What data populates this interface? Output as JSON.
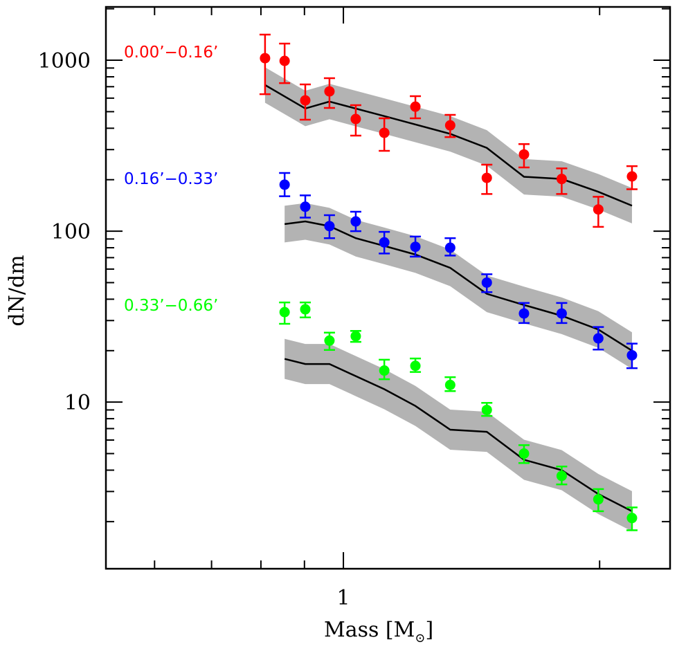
{
  "chart_data": {
    "type": "scatter",
    "title": "",
    "xlabel": "Mass [M☉]",
    "xlabel_parts": {
      "main": "Mass [M",
      "sub": "⊙",
      "close": "]"
    },
    "ylabel": "dN/dm",
    "xscale": "log",
    "yscale": "log",
    "xlim": [
      0.526,
      2.42
    ],
    "ylim": [
      1.06,
      2050
    ],
    "x_ticks_major": [
      {
        "value": 1,
        "label": "1"
      },
      {
        "value": 2,
        "label": ""
      }
    ],
    "x_ticks_minor": [
      0.6,
      0.7,
      0.8,
      0.9
    ],
    "y_ticks_major": [
      {
        "value": 10,
        "label": "10"
      },
      {
        "value": 100,
        "label": "100"
      },
      {
        "value": 1000,
        "label": "1000"
      }
    ],
    "y_ticks_minor": [
      2,
      3,
      4,
      5,
      6,
      7,
      8,
      9,
      20,
      30,
      40,
      50,
      60,
      70,
      80,
      90,
      200,
      300,
      400,
      500,
      600,
      700,
      800,
      900,
      2000
    ],
    "grid": false,
    "band_color": "#b3b3b3",
    "model_line_color": "#000000",
    "series": [
      {
        "name": "0.00’−0.16’",
        "color": "#ff0000",
        "points": [
          {
            "x": 0.809,
            "y": 1028,
            "ylo": 633,
            "yhi": 1412
          },
          {
            "x": 0.853,
            "y": 991,
            "ylo": 735,
            "yhi": 1251
          },
          {
            "x": 0.902,
            "y": 582,
            "ylo": 449,
            "yhi": 722
          },
          {
            "x": 0.963,
            "y": 657,
            "ylo": 526,
            "yhi": 785
          },
          {
            "x": 1.034,
            "y": 453,
            "ylo": 362,
            "yhi": 546
          },
          {
            "x": 1.117,
            "y": 376,
            "ylo": 295,
            "yhi": 457
          },
          {
            "x": 1.215,
            "y": 535,
            "ylo": 457,
            "yhi": 616
          },
          {
            "x": 1.335,
            "y": 416,
            "ylo": 355,
            "yhi": 479
          },
          {
            "x": 1.474,
            "y": 205,
            "ylo": 165,
            "yhi": 245
          },
          {
            "x": 1.63,
            "y": 281,
            "ylo": 236,
            "yhi": 323
          },
          {
            "x": 1.805,
            "y": 202,
            "ylo": 165,
            "yhi": 233
          },
          {
            "x": 1.993,
            "y": 134,
            "ylo": 106,
            "yhi": 159
          },
          {
            "x": 2.183,
            "y": 209,
            "ylo": 176,
            "yhi": 240
          }
        ],
        "model": {
          "x": [
            0.809,
            0.902,
            0.963,
            1.117,
            1.335,
            1.474,
            1.63,
            1.805,
            1.993,
            2.183
          ],
          "y": [
            716,
            522,
            573,
            471,
            371,
            307,
            208,
            202,
            170,
            141
          ],
          "band_factor": 1.27
        }
      },
      {
        "name": "0.16’−0.33’",
        "color": "#0000ff",
        "points": [
          {
            "x": 0.853,
            "y": 187,
            "ylo": 160,
            "yhi": 219
          },
          {
            "x": 0.902,
            "y": 139,
            "ylo": 120,
            "yhi": 162
          },
          {
            "x": 0.963,
            "y": 107,
            "ylo": 91,
            "yhi": 124
          },
          {
            "x": 1.034,
            "y": 114,
            "ylo": 100,
            "yhi": 130
          },
          {
            "x": 1.117,
            "y": 86,
            "ylo": 74,
            "yhi": 99
          },
          {
            "x": 1.215,
            "y": 81,
            "ylo": 71,
            "yhi": 93
          },
          {
            "x": 1.335,
            "y": 80,
            "ylo": 72,
            "yhi": 91
          },
          {
            "x": 1.474,
            "y": 50,
            "ylo": 44,
            "yhi": 56
          },
          {
            "x": 1.63,
            "y": 33,
            "ylo": 29,
            "yhi": 38
          },
          {
            "x": 1.805,
            "y": 33,
            "ylo": 29,
            "yhi": 38
          },
          {
            "x": 1.993,
            "y": 23.6,
            "ylo": 20.3,
            "yhi": 27.5
          },
          {
            "x": 2.183,
            "y": 18.8,
            "ylo": 15.8,
            "yhi": 22.0
          }
        ],
        "model": {
          "x": [
            0.853,
            0.902,
            0.963,
            1.034,
            1.117,
            1.215,
            1.335,
            1.474,
            1.63,
            1.805,
            1.993,
            2.183
          ],
          "y": [
            110,
            114,
            107,
            91,
            82,
            73,
            61,
            43,
            37,
            32,
            26.6,
            20
          ],
          "band_factor": 1.28
        }
      },
      {
        "name": "0.33’−0.66’",
        "color": "#00ff00",
        "points": [
          {
            "x": 0.853,
            "y": 33.6,
            "ylo": 28.7,
            "yhi": 38.3
          },
          {
            "x": 0.902,
            "y": 34.9,
            "ylo": 31.3,
            "yhi": 38.3
          },
          {
            "x": 0.963,
            "y": 22.9,
            "ylo": 20.2,
            "yhi": 25.5
          },
          {
            "x": 1.034,
            "y": 24.3,
            "ylo": 22.5,
            "yhi": 26.1
          },
          {
            "x": 1.117,
            "y": 15.3,
            "ylo": 13.6,
            "yhi": 17.7
          },
          {
            "x": 1.215,
            "y": 16.3,
            "ylo": 15.0,
            "yhi": 18.0
          },
          {
            "x": 1.335,
            "y": 12.6,
            "ylo": 11.6,
            "yhi": 14.0
          },
          {
            "x": 1.474,
            "y": 9.0,
            "ylo": 8.3,
            "yhi": 9.9
          },
          {
            "x": 1.63,
            "y": 5.0,
            "ylo": 4.4,
            "yhi": 5.6
          },
          {
            "x": 1.805,
            "y": 3.7,
            "ylo": 3.3,
            "yhi": 4.2
          },
          {
            "x": 1.993,
            "y": 2.7,
            "ylo": 2.3,
            "yhi": 3.1
          },
          {
            "x": 2.183,
            "y": 2.1,
            "ylo": 1.78,
            "yhi": 2.42
          }
        ],
        "model": {
          "x": [
            0.853,
            0.902,
            0.963,
            1.117,
            1.215,
            1.335,
            1.474,
            1.63,
            1.805,
            1.993,
            2.183
          ],
          "y": [
            17.9,
            16.7,
            16.7,
            11.9,
            9.5,
            6.9,
            6.7,
            4.6,
            4.0,
            2.9,
            2.3
          ],
          "band_factor": 1.31
        }
      }
    ]
  }
}
